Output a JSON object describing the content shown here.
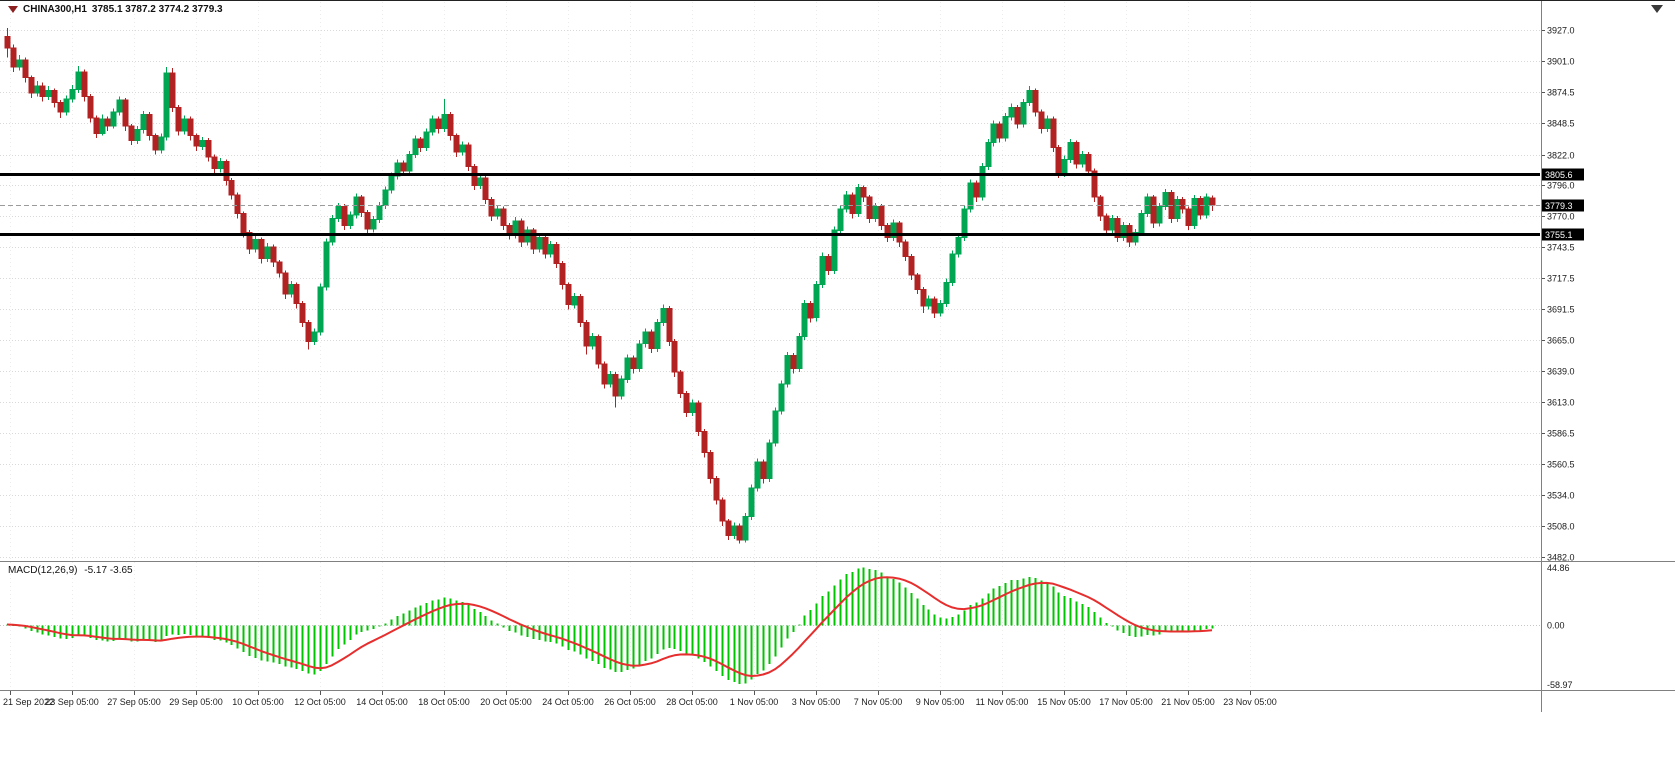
{
  "header": {
    "symbol": "CHINA300,H1",
    "ohlc": "3785.1 3787.2 3774.2 3779.3"
  },
  "colors": {
    "up": "#00a651",
    "down": "#b22222",
    "macd_hist": "#00c400",
    "macd_signal": "#e62e2e",
    "grid": "#d9d9d9",
    "hline": "#000000",
    "axis_text": "#1a1a1a",
    "highlight_bg": "#000000",
    "highlight_text": "#ffffff",
    "separator": "#808080"
  },
  "chart_data": [
    {
      "type": "candlestick",
      "symbol": "CHINA300",
      "timeframe": "H1",
      "y_ticks": [
        "3927.0",
        "3901.0",
        "3874.5",
        "3848.5",
        "3822.0",
        "3796.0",
        "3770.0",
        "3743.5",
        "3717.5",
        "3691.5",
        "3665.0",
        "3639.0",
        "3613.0",
        "3586.5",
        "3560.5",
        "3534.0",
        "3508.0",
        "3482.0"
      ],
      "y_range": [
        3480,
        3951
      ],
      "x_ticks": [
        "21 Sep 2022",
        "23 Sep 05:00",
        "27 Sep 05:00",
        "29 Sep 05:00",
        "10 Oct 05:00",
        "12 Oct 05:00",
        "14 Oct 05:00",
        "18 Oct 05:00",
        "20 Oct 05:00",
        "24 Oct 05:00",
        "26 Oct 05:00",
        "28 Oct 05:00",
        "1 Nov 05:00",
        "3 Nov 05:00",
        "7 Nov 05:00",
        "9 Nov 05:00",
        "11 Nov 05:00",
        "15 Nov 05:00",
        "17 Nov 05:00",
        "21 Nov 05:00",
        "23 Nov 05:00"
      ],
      "hlines": [
        {
          "price": 3805.6,
          "label": "3805.6"
        },
        {
          "price": 3755.1,
          "label": "3755.1"
        }
      ],
      "bid": {
        "price": 3779.3,
        "label": "3779.3"
      },
      "candles": [
        [
          3922,
          3929,
          3904,
          3912
        ],
        [
          3912,
          3915,
          3892,
          3896
        ],
        [
          3896,
          3906,
          3893,
          3902
        ],
        [
          3902,
          3904,
          3883,
          3887
        ],
        [
          3887,
          3889,
          3870,
          3874
        ],
        [
          3874,
          3884,
          3871,
          3880
        ],
        [
          3880,
          3883,
          3867,
          3871
        ],
        [
          3871,
          3880,
          3868,
          3876
        ],
        [
          3876,
          3878,
          3862,
          3866
        ],
        [
          3866,
          3868,
          3853,
          3858
        ],
        [
          3858,
          3872,
          3855,
          3869
        ],
        [
          3869,
          3881,
          3866,
          3877
        ],
        [
          3877,
          3897,
          3874,
          3892
        ],
        [
          3892,
          3894,
          3867,
          3871
        ],
        [
          3871,
          3873,
          3849,
          3853
        ],
        [
          3853,
          3855,
          3836,
          3840
        ],
        [
          3840,
          3856,
          3838,
          3852
        ],
        [
          3852,
          3854,
          3842,
          3846
        ],
        [
          3846,
          3861,
          3844,
          3858
        ],
        [
          3858,
          3871,
          3855,
          3868
        ],
        [
          3868,
          3870,
          3842,
          3846
        ],
        [
          3846,
          3848,
          3830,
          3834
        ],
        [
          3834,
          3846,
          3831,
          3843
        ],
        [
          3843,
          3859,
          3840,
          3856
        ],
        [
          3856,
          3858,
          3834,
          3838
        ],
        [
          3838,
          3840,
          3822,
          3826
        ],
        [
          3826,
          3840,
          3823,
          3837
        ],
        [
          3837,
          3896,
          3834,
          3891
        ],
        [
          3891,
          3895,
          3858,
          3862
        ],
        [
          3862,
          3864,
          3838,
          3842
        ],
        [
          3842,
          3855,
          3839,
          3852
        ],
        [
          3852,
          3854,
          3834,
          3838
        ],
        [
          3838,
          3840,
          3825,
          3829
        ],
        [
          3829,
          3837,
          3826,
          3834
        ],
        [
          3834,
          3836,
          3816,
          3820
        ],
        [
          3820,
          3822,
          3806,
          3810
        ],
        [
          3810,
          3819,
          3807,
          3816
        ],
        [
          3816,
          3818,
          3796,
          3800
        ],
        [
          3800,
          3802,
          3784,
          3788
        ],
        [
          3788,
          3790,
          3768,
          3772
        ],
        [
          3772,
          3774,
          3752,
          3756
        ],
        [
          3756,
          3758,
          3738,
          3742
        ],
        [
          3742,
          3753,
          3739,
          3750
        ],
        [
          3750,
          3752,
          3730,
          3734
        ],
        [
          3734,
          3747,
          3731,
          3744
        ],
        [
          3744,
          3746,
          3727,
          3731
        ],
        [
          3731,
          3733,
          3718,
          3722
        ],
        [
          3722,
          3724,
          3700,
          3704
        ],
        [
          3704,
          3715,
          3701,
          3712
        ],
        [
          3712,
          3714,
          3692,
          3696
        ],
        [
          3696,
          3698,
          3676,
          3680
        ],
        [
          3680,
          3682,
          3657,
          3664
        ],
        [
          3664,
          3675,
          3661,
          3672
        ],
        [
          3672,
          3713,
          3669,
          3710
        ],
        [
          3710,
          3751,
          3707,
          3748
        ],
        [
          3748,
          3771,
          3745,
          3768
        ],
        [
          3768,
          3781,
          3765,
          3778
        ],
        [
          3778,
          3780,
          3758,
          3762
        ],
        [
          3762,
          3774,
          3759,
          3771
        ],
        [
          3771,
          3789,
          3768,
          3786
        ],
        [
          3786,
          3788,
          3769,
          3773
        ],
        [
          3773,
          3775,
          3755,
          3759
        ],
        [
          3759,
          3770,
          3756,
          3767
        ],
        [
          3767,
          3782,
          3764,
          3779
        ],
        [
          3779,
          3795,
          3776,
          3792
        ],
        [
          3792,
          3807,
          3789,
          3804
        ],
        [
          3804,
          3818,
          3801,
          3815
        ],
        [
          3815,
          3817,
          3804,
          3808
        ],
        [
          3808,
          3825,
          3805,
          3822
        ],
        [
          3822,
          3838,
          3819,
          3835
        ],
        [
          3835,
          3837,
          3824,
          3828
        ],
        [
          3828,
          3844,
          3825,
          3841
        ],
        [
          3841,
          3855,
          3838,
          3852
        ],
        [
          3852,
          3854,
          3840,
          3844
        ],
        [
          3844,
          3869,
          3841,
          3856
        ],
        [
          3856,
          3858,
          3834,
          3838
        ],
        [
          3838,
          3840,
          3820,
          3824
        ],
        [
          3824,
          3833,
          3821,
          3830
        ],
        [
          3830,
          3832,
          3808,
          3812
        ],
        [
          3812,
          3814,
          3792,
          3796
        ],
        [
          3796,
          3805,
          3793,
          3802
        ],
        [
          3802,
          3804,
          3780,
          3784
        ],
        [
          3784,
          3786,
          3766,
          3770
        ],
        [
          3770,
          3779,
          3767,
          3776
        ],
        [
          3776,
          3778,
          3758,
          3762
        ],
        [
          3762,
          3764,
          3750,
          3754
        ],
        [
          3754,
          3769,
          3751,
          3766
        ],
        [
          3766,
          3768,
          3744,
          3748
        ],
        [
          3748,
          3761,
          3745,
          3758
        ],
        [
          3758,
          3760,
          3738,
          3742
        ],
        [
          3742,
          3755,
          3739,
          3752
        ],
        [
          3752,
          3754,
          3734,
          3738
        ],
        [
          3738,
          3749,
          3735,
          3746
        ],
        [
          3746,
          3748,
          3726,
          3730
        ],
        [
          3730,
          3732,
          3708,
          3712
        ],
        [
          3712,
          3714,
          3691,
          3695
        ],
        [
          3695,
          3705,
          3692,
          3702
        ],
        [
          3702,
          3704,
          3676,
          3680
        ],
        [
          3680,
          3682,
          3653,
          3660
        ],
        [
          3660,
          3671,
          3657,
          3668
        ],
        [
          3668,
          3670,
          3641,
          3645
        ],
        [
          3645,
          3647,
          3624,
          3628
        ],
        [
          3628,
          3639,
          3625,
          3636
        ],
        [
          3636,
          3638,
          3608,
          3618
        ],
        [
          3618,
          3635,
          3615,
          3632
        ],
        [
          3632,
          3653,
          3629,
          3650
        ],
        [
          3650,
          3652,
          3637,
          3641
        ],
        [
          3641,
          3665,
          3638,
          3662
        ],
        [
          3662,
          3675,
          3659,
          3672
        ],
        [
          3672,
          3674,
          3654,
          3658
        ],
        [
          3658,
          3683,
          3655,
          3680
        ],
        [
          3680,
          3695,
          3677,
          3692
        ],
        [
          3692,
          3694,
          3660,
          3664
        ],
        [
          3664,
          3666,
          3634,
          3638
        ],
        [
          3638,
          3640,
          3616,
          3620
        ],
        [
          3620,
          3622,
          3600,
          3604
        ],
        [
          3604,
          3615,
          3601,
          3612
        ],
        [
          3612,
          3614,
          3584,
          3588
        ],
        [
          3588,
          3590,
          3566,
          3570
        ],
        [
          3570,
          3572,
          3544,
          3548
        ],
        [
          3548,
          3550,
          3526,
          3530
        ],
        [
          3530,
          3532,
          3508,
          3512
        ],
        [
          3512,
          3514,
          3496,
          3500
        ],
        [
          3500,
          3511,
          3497,
          3508
        ],
        [
          3508,
          3510,
          3493,
          3496
        ],
        [
          3496,
          3519,
          3494,
          3516
        ],
        [
          3516,
          3543,
          3513,
          3540
        ],
        [
          3540,
          3565,
          3537,
          3562
        ],
        [
          3562,
          3564,
          3544,
          3548
        ],
        [
          3548,
          3581,
          3545,
          3578
        ],
        [
          3578,
          3608,
          3575,
          3605
        ],
        [
          3605,
          3631,
          3602,
          3628
        ],
        [
          3628,
          3655,
          3625,
          3652
        ],
        [
          3652,
          3654,
          3637,
          3641
        ],
        [
          3641,
          3671,
          3638,
          3668
        ],
        [
          3668,
          3699,
          3665,
          3696
        ],
        [
          3696,
          3698,
          3680,
          3684
        ],
        [
          3684,
          3715,
          3681,
          3712
        ],
        [
          3712,
          3739,
          3709,
          3736
        ],
        [
          3736,
          3738,
          3720,
          3724
        ],
        [
          3724,
          3761,
          3721,
          3758
        ],
        [
          3758,
          3779,
          3755,
          3776
        ],
        [
          3776,
          3791,
          3773,
          3788
        ],
        [
          3788,
          3790,
          3768,
          3772
        ],
        [
          3772,
          3797,
          3769,
          3794
        ],
        [
          3794,
          3796,
          3782,
          3786
        ],
        [
          3786,
          3788,
          3764,
          3768
        ],
        [
          3768,
          3781,
          3765,
          3778
        ],
        [
          3778,
          3780,
          3758,
          3762
        ],
        [
          3762,
          3764,
          3748,
          3752
        ],
        [
          3752,
          3767,
          3749,
          3764
        ],
        [
          3764,
          3766,
          3744,
          3748
        ],
        [
          3748,
          3750,
          3732,
          3736
        ],
        [
          3736,
          3738,
          3716,
          3720
        ],
        [
          3720,
          3722,
          3704,
          3708
        ],
        [
          3708,
          3710,
          3688,
          3694
        ],
        [
          3694,
          3703,
          3691,
          3700
        ],
        [
          3700,
          3702,
          3684,
          3688
        ],
        [
          3688,
          3699,
          3685,
          3696
        ],
        [
          3696,
          3717,
          3693,
          3714
        ],
        [
          3714,
          3741,
          3711,
          3738
        ],
        [
          3738,
          3755,
          3735,
          3752
        ],
        [
          3752,
          3779,
          3749,
          3776
        ],
        [
          3776,
          3801,
          3773,
          3798
        ],
        [
          3798,
          3800,
          3782,
          3786
        ],
        [
          3786,
          3815,
          3783,
          3812
        ],
        [
          3812,
          3835,
          3809,
          3832
        ],
        [
          3832,
          3851,
          3829,
          3848
        ],
        [
          3848,
          3850,
          3832,
          3836
        ],
        [
          3836,
          3857,
          3833,
          3854
        ],
        [
          3854,
          3865,
          3851,
          3862
        ],
        [
          3862,
          3864,
          3844,
          3848
        ],
        [
          3848,
          3869,
          3845,
          3866
        ],
        [
          3866,
          3880,
          3863,
          3876
        ],
        [
          3876,
          3878,
          3854,
          3858
        ],
        [
          3858,
          3860,
          3840,
          3844
        ],
        [
          3844,
          3855,
          3841,
          3852
        ],
        [
          3852,
          3854,
          3824,
          3828
        ],
        [
          3828,
          3830,
          3802,
          3806
        ],
        [
          3806,
          3821,
          3803,
          3818
        ],
        [
          3818,
          3835,
          3815,
          3832
        ],
        [
          3832,
          3834,
          3810,
          3814
        ],
        [
          3814,
          3825,
          3811,
          3822
        ],
        [
          3822,
          3824,
          3804,
          3808
        ],
        [
          3808,
          3810,
          3782,
          3786
        ],
        [
          3786,
          3788,
          3766,
          3770
        ],
        [
          3770,
          3772,
          3754,
          3758
        ],
        [
          3758,
          3771,
          3755,
          3768
        ],
        [
          3768,
          3770,
          3748,
          3752
        ],
        [
          3752,
          3765,
          3749,
          3762
        ],
        [
          3762,
          3764,
          3744,
          3748
        ],
        [
          3748,
          3759,
          3745,
          3756
        ],
        [
          3756,
          3775,
          3753,
          3772
        ],
        [
          3772,
          3789,
          3769,
          3786
        ],
        [
          3786,
          3788,
          3760,
          3764
        ],
        [
          3764,
          3781,
          3761,
          3778
        ],
        [
          3778,
          3793,
          3775,
          3790
        ],
        [
          3790,
          3792,
          3764,
          3768
        ],
        [
          3768,
          3787,
          3765,
          3784
        ],
        [
          3784,
          3786,
          3772,
          3776
        ],
        [
          3776,
          3778,
          3758,
          3762
        ],
        [
          3762,
          3788,
          3759,
          3785
        ],
        [
          3785,
          3787,
          3767,
          3771
        ],
        [
          3771,
          3789,
          3768,
          3786
        ],
        [
          3785.1,
          3787.2,
          3774.2,
          3779.3
        ]
      ]
    },
    {
      "type": "macd",
      "name": "MACD(12,26,9)",
      "params": [
        12,
        26,
        9
      ],
      "values": "-5.17 -3.65",
      "value_main": "-5.17",
      "value_signal": "-3.65",
      "axis_labels": [
        "44.86",
        "0.00",
        "-58.97"
      ]
    }
  ]
}
